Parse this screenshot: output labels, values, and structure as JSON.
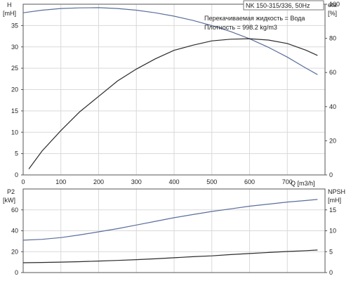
{
  "header": {
    "model": "NK 150-315/336, 50Hz",
    "liquid": "Перекачиваемая жидкость = Вода",
    "density": "Плотность = 998.2 kg/m3"
  },
  "colors": {
    "head_curve": "#5a6e9a",
    "eta_curve": "#2b2b2b",
    "p2_curve": "#5a6e9a",
    "npsh_curve": "#2b2b2b"
  },
  "chart_data": [
    {
      "type": "line",
      "panel": "top",
      "x_axis": {
        "label": "Q [m3/h]",
        "range": [
          0,
          800
        ],
        "ticks": [
          0,
          100,
          200,
          300,
          400,
          500,
          600,
          700
        ]
      },
      "y_left": {
        "label_line1": "H",
        "label_line2": "[mH]",
        "range": [
          0,
          40
        ],
        "ticks": [
          0,
          5,
          10,
          15,
          20,
          25,
          30,
          35
        ]
      },
      "y_right": {
        "label_line1": "eta",
        "label_line2": "[%]",
        "range": [
          0,
          100
        ],
        "ticks": [
          0,
          20,
          40,
          60,
          80,
          100
        ]
      },
      "grid": true,
      "series": [
        {
          "axis": "left",
          "x": [
            0,
            50,
            100,
            150,
            200,
            250,
            300,
            350,
            400,
            450,
            500,
            550,
            600,
            650,
            700,
            750,
            780
          ],
          "values": [
            38.0,
            38.6,
            39.0,
            39.15,
            39.2,
            39.0,
            38.6,
            38.0,
            37.2,
            36.2,
            35.0,
            33.6,
            31.9,
            29.9,
            27.6,
            25.0,
            23.5
          ]
        },
        {
          "axis": "right",
          "x": [
            15,
            50,
            100,
            150,
            200,
            250,
            300,
            350,
            400,
            450,
            500,
            550,
            600,
            650,
            700,
            750,
            780
          ],
          "values": [
            3.5,
            14,
            26,
            37,
            46,
            55,
            62,
            68,
            73,
            76,
            78.5,
            79.5,
            79.8,
            79,
            77,
            73,
            70
          ]
        }
      ]
    },
    {
      "type": "line",
      "panel": "bottom",
      "x_axis": {
        "range": [
          0,
          800
        ]
      },
      "y_left": {
        "label_line1": "P2",
        "label_line2": "[kW]",
        "range": [
          0,
          80
        ],
        "ticks": [
          0,
          20,
          40,
          60
        ]
      },
      "y_right": {
        "label_line1": "NPSH",
        "label_line2": "[mH]",
        "range": [
          0,
          20
        ],
        "ticks": [
          0,
          5,
          10,
          15
        ]
      },
      "grid": true,
      "series": [
        {
          "axis": "left",
          "x": [
            0,
            50,
            100,
            150,
            200,
            250,
            300,
            350,
            400,
            450,
            500,
            550,
            600,
            650,
            700,
            750,
            780
          ],
          "values": [
            31,
            31.8,
            33.5,
            36,
            39,
            42,
            45.5,
            49,
            52.5,
            55.5,
            58.5,
            61,
            63.5,
            65.5,
            67.5,
            69,
            70
          ]
        },
        {
          "axis": "right",
          "x": [
            0,
            50,
            100,
            150,
            200,
            250,
            300,
            350,
            400,
            450,
            500,
            550,
            600,
            650,
            700,
            750,
            780
          ],
          "values": [
            2.35,
            2.42,
            2.5,
            2.6,
            2.75,
            2.9,
            3.1,
            3.3,
            3.55,
            3.8,
            4.0,
            4.3,
            4.55,
            4.8,
            5.05,
            5.25,
            5.4
          ]
        }
      ]
    }
  ]
}
